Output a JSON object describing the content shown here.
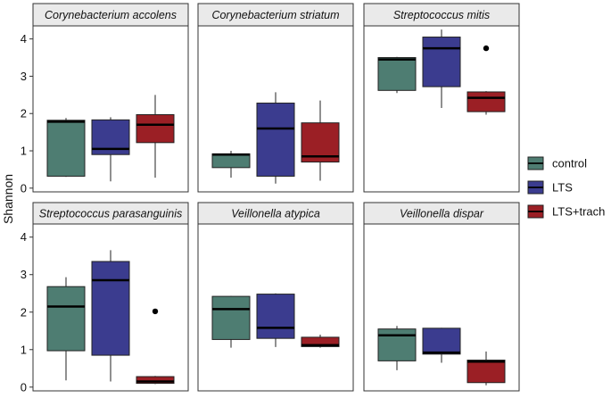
{
  "chart_data": {
    "type": "boxplot",
    "ylabel": "Shannon",
    "ylim": [
      -0.1,
      4.35
    ],
    "yticks": [
      0,
      1,
      2,
      3,
      4
    ],
    "grid": false,
    "legend_position": "right",
    "groups": [
      {
        "name": "control",
        "color": "#4E7D72"
      },
      {
        "name": "LTS",
        "color": "#3B3C8F"
      },
      {
        "name": "LTS+trach",
        "color": "#9B1F25"
      }
    ],
    "panels": [
      {
        "title": "Corynebacterium accolens",
        "boxes": [
          {
            "group": "control",
            "min": 0.3,
            "q1": 0.32,
            "median": 1.78,
            "q3": 1.82,
            "max": 1.88,
            "outliers": []
          },
          {
            "group": "LTS",
            "min": 0.18,
            "q1": 0.9,
            "median": 1.05,
            "q3": 1.83,
            "max": 1.9,
            "outliers": []
          },
          {
            "group": "LTS+trach",
            "min": 0.28,
            "q1": 1.22,
            "median": 1.7,
            "q3": 1.97,
            "max": 2.5,
            "outliers": []
          }
        ]
      },
      {
        "title": "Corynebacterium striatum",
        "boxes": [
          {
            "group": "control",
            "min": 0.28,
            "q1": 0.55,
            "median": 0.9,
            "q3": 0.92,
            "max": 1.0,
            "outliers": []
          },
          {
            "group": "LTS",
            "min": 0.12,
            "q1": 0.32,
            "median": 1.6,
            "q3": 2.28,
            "max": 2.57,
            "outliers": []
          },
          {
            "group": "LTS+trach",
            "min": 0.2,
            "q1": 0.7,
            "median": 0.85,
            "q3": 1.75,
            "max": 2.35,
            "outliers": []
          }
        ]
      },
      {
        "title": "Streptococcus mitis",
        "boxes": [
          {
            "group": "control",
            "min": 2.55,
            "q1": 2.62,
            "median": 3.45,
            "q3": 3.5,
            "max": 3.52,
            "outliers": []
          },
          {
            "group": "LTS",
            "min": 2.15,
            "q1": 2.72,
            "median": 3.75,
            "q3": 4.05,
            "max": 4.25,
            "outliers": []
          },
          {
            "group": "LTS+trach",
            "min": 1.97,
            "q1": 2.05,
            "median": 2.42,
            "q3": 2.58,
            "max": 2.6,
            "outliers": [
              3.75
            ]
          }
        ]
      },
      {
        "title": "Streptococcus parasanguinis",
        "boxes": [
          {
            "group": "control",
            "min": 0.18,
            "q1": 0.97,
            "median": 2.15,
            "q3": 2.68,
            "max": 2.93,
            "outliers": []
          },
          {
            "group": "LTS",
            "min": 0.15,
            "q1": 0.85,
            "median": 2.85,
            "q3": 3.35,
            "max": 3.65,
            "outliers": []
          },
          {
            "group": "LTS+trach",
            "min": 0.08,
            "q1": 0.1,
            "median": 0.15,
            "q3": 0.28,
            "max": 0.3,
            "outliers": [
              2.02
            ]
          }
        ]
      },
      {
        "title": "Veillonella atypica",
        "boxes": [
          {
            "group": "control",
            "min": 1.05,
            "q1": 1.27,
            "median": 2.08,
            "q3": 2.42,
            "max": 2.43,
            "outliers": []
          },
          {
            "group": "LTS",
            "min": 1.07,
            "q1": 1.3,
            "median": 1.58,
            "q3": 2.48,
            "max": 2.5,
            "outliers": []
          },
          {
            "group": "LTS+trach",
            "min": 1.05,
            "q1": 1.08,
            "median": 1.12,
            "q3": 1.33,
            "max": 1.4,
            "outliers": []
          }
        ]
      },
      {
        "title": "Veillonella dispar",
        "boxes": [
          {
            "group": "control",
            "min": 0.45,
            "q1": 0.7,
            "median": 1.38,
            "q3": 1.55,
            "max": 1.63,
            "outliers": []
          },
          {
            "group": "LTS",
            "min": 0.65,
            "q1": 0.88,
            "median": 0.92,
            "q3": 1.57,
            "max": 1.58,
            "outliers": []
          },
          {
            "group": "LTS+trach",
            "min": 0.05,
            "q1": 0.12,
            "median": 0.68,
            "q3": 0.72,
            "max": 0.95,
            "outliers": []
          }
        ]
      }
    ]
  }
}
